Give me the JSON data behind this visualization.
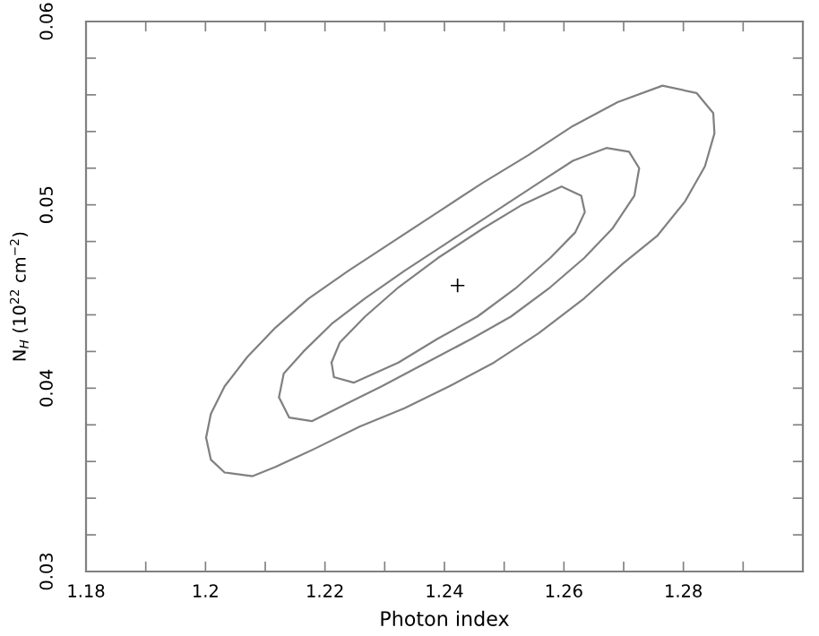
{
  "chart_data": {
    "type": "scatter",
    "xlabel": "Photon index",
    "ylabel": "N$_{H}$ (10$^{22}$ cm$^{−2}$)",
    "xlim": [
      1.18,
      1.3
    ],
    "ylim": [
      0.03,
      0.06
    ],
    "xticks": [
      1.18,
      {
        "value": 1.19,
        "label": null
      },
      1.2,
      {
        "value": 1.21,
        "label": null
      },
      1.22,
      {
        "value": 1.23,
        "label": null
      },
      1.24,
      {
        "value": 1.25,
        "label": null
      },
      1.26,
      {
        "value": 1.27,
        "label": null
      },
      1.28,
      {
        "value": 1.29,
        "label": null
      }
    ],
    "yticks": [
      0.03,
      {
        "value": 0.032,
        "label": null
      },
      {
        "value": 0.034,
        "label": null
      },
      {
        "value": 0.036,
        "label": null
      },
      {
        "value": 0.038,
        "label": null
      },
      0.04,
      {
        "value": 0.042,
        "label": null
      },
      {
        "value": 0.044,
        "label": null
      },
      {
        "value": 0.046,
        "label": null
      },
      {
        "value": 0.048,
        "label": null
      },
      0.05,
      {
        "value": 0.052,
        "label": null
      },
      {
        "value": 0.054,
        "label": null
      },
      {
        "value": 0.056,
        "label": null
      },
      {
        "value": 0.058,
        "label": null
      },
      0.06
    ],
    "grid": false,
    "legend": false,
    "marker": "cross",
    "series": [
      {
        "color": "#000000",
        "x": [
          1.2422
        ],
        "values": [
          0.0456
        ]
      }
    ]
  }
}
